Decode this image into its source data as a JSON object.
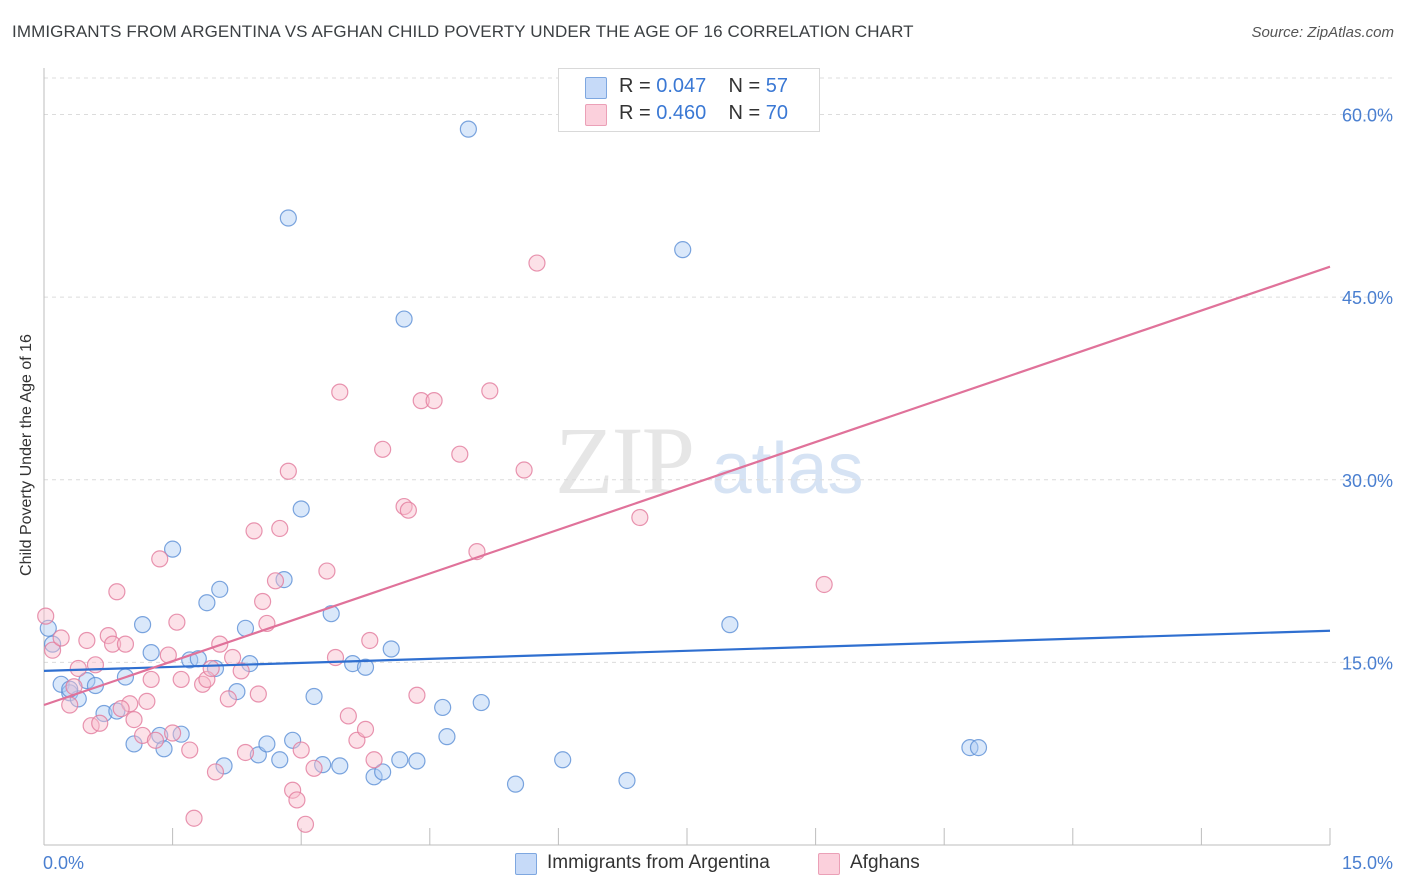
{
  "header": {
    "title": "IMMIGRANTS FROM ARGENTINA VS AFGHAN CHILD POVERTY UNDER THE AGE OF 16 CORRELATION CHART",
    "source": "Source: ZipAtlas.com"
  },
  "watermark": {
    "zip": "ZIP",
    "atlas": "atlas"
  },
  "legend": {
    "r_label": "R = ",
    "n_label": "N = ",
    "rows": [
      {
        "r": "0.047",
        "n": "57",
        "color": "#aecbf5"
      },
      {
        "r": "0.460",
        "n": "70",
        "color": "#f8bccd"
      }
    ]
  },
  "chart_data": {
    "type": "scatter",
    "title": "IMMIGRANTS FROM ARGENTINA VS AFGHAN CHILD POVERTY UNDER THE AGE OF 16 CORRELATION CHART",
    "xlabel": "",
    "ylabel": "Child Poverty Under the Age of 16",
    "xlim": [
      0,
      15
    ],
    "ylim": [
      0,
      63
    ],
    "x_tick_labels": [
      "0.0%",
      "15.0%"
    ],
    "y_ticks": [
      15,
      30,
      45,
      60
    ],
    "y_tick_labels": [
      "15.0%",
      "30.0%",
      "45.0%",
      "60.0%"
    ],
    "grid": true,
    "series": [
      {
        "name": "Immigrants from Argentina",
        "color": "#aecbf5",
        "stroke": "#5b8fd6",
        "trend": {
          "x": [
            0,
            15
          ],
          "y": [
            14.3,
            17.6
          ],
          "color": "#2f6fd0"
        },
        "points": [
          [
            0.1,
            16.5
          ],
          [
            0.2,
            13.2
          ],
          [
            0.3,
            12.5
          ],
          [
            0.4,
            12.0
          ],
          [
            0.5,
            13.5
          ],
          [
            0.6,
            13.1
          ],
          [
            0.7,
            10.8
          ],
          [
            0.85,
            11.0
          ],
          [
            0.95,
            13.8
          ],
          [
            1.05,
            8.3
          ],
          [
            1.15,
            18.1
          ],
          [
            1.25,
            15.8
          ],
          [
            1.35,
            9.0
          ],
          [
            1.4,
            7.9
          ],
          [
            1.5,
            24.3
          ],
          [
            1.6,
            9.1
          ],
          [
            1.7,
            15.2
          ],
          [
            1.8,
            15.3
          ],
          [
            1.9,
            19.9
          ],
          [
            2.0,
            14.5
          ],
          [
            2.05,
            21.0
          ],
          [
            2.1,
            6.5
          ],
          [
            2.25,
            12.6
          ],
          [
            2.35,
            17.8
          ],
          [
            2.4,
            14.9
          ],
          [
            2.5,
            7.4
          ],
          [
            2.6,
            8.3
          ],
          [
            2.75,
            7.0
          ],
          [
            2.8,
            21.8
          ],
          [
            2.85,
            51.5
          ],
          [
            2.9,
            8.6
          ],
          [
            3.0,
            27.6
          ],
          [
            3.15,
            12.2
          ],
          [
            3.25,
            6.6
          ],
          [
            3.35,
            19.0
          ],
          [
            3.45,
            6.5
          ],
          [
            3.6,
            14.9
          ],
          [
            3.75,
            14.6
          ],
          [
            3.85,
            5.6
          ],
          [
            3.95,
            6.0
          ],
          [
            4.05,
            16.1
          ],
          [
            4.15,
            7.0
          ],
          [
            4.2,
            43.2
          ],
          [
            4.35,
            6.9
          ],
          [
            4.65,
            11.3
          ],
          [
            4.7,
            8.9
          ],
          [
            4.95,
            58.8
          ],
          [
            5.1,
            11.7
          ],
          [
            5.5,
            5.0
          ],
          [
            6.05,
            7.0
          ],
          [
            6.8,
            5.3
          ],
          [
            7.45,
            48.9
          ],
          [
            8.0,
            18.1
          ],
          [
            10.8,
            8.0
          ],
          [
            10.9,
            8.0
          ],
          [
            0.05,
            17.8
          ],
          [
            0.3,
            12.8
          ]
        ]
      },
      {
        "name": "Afghans",
        "color": "#f8bccd",
        "stroke": "#e27a9c",
        "trend": {
          "x": [
            0,
            15
          ],
          "y": [
            11.5,
            47.5
          ],
          "color": "#e0729a"
        },
        "points": [
          [
            0.02,
            18.8
          ],
          [
            0.1,
            16.0
          ],
          [
            0.2,
            17.0
          ],
          [
            0.3,
            11.5
          ],
          [
            0.4,
            14.5
          ],
          [
            0.5,
            16.8
          ],
          [
            0.55,
            9.8
          ],
          [
            0.65,
            10.0
          ],
          [
            0.75,
            17.2
          ],
          [
            0.8,
            16.5
          ],
          [
            0.85,
            20.8
          ],
          [
            0.95,
            16.5
          ],
          [
            1.0,
            11.6
          ],
          [
            1.05,
            10.3
          ],
          [
            1.15,
            9.0
          ],
          [
            1.25,
            13.6
          ],
          [
            1.3,
            8.6
          ],
          [
            1.35,
            23.5
          ],
          [
            1.45,
            15.6
          ],
          [
            1.55,
            18.3
          ],
          [
            1.6,
            13.6
          ],
          [
            1.7,
            7.8
          ],
          [
            1.75,
            2.2
          ],
          [
            1.85,
            13.2
          ],
          [
            1.9,
            13.6
          ],
          [
            1.95,
            14.5
          ],
          [
            2.0,
            6.0
          ],
          [
            2.05,
            16.5
          ],
          [
            2.15,
            12.0
          ],
          [
            2.3,
            14.3
          ],
          [
            2.35,
            7.6
          ],
          [
            2.45,
            25.8
          ],
          [
            2.5,
            12.4
          ],
          [
            2.55,
            20.0
          ],
          [
            2.6,
            18.2
          ],
          [
            2.7,
            21.7
          ],
          [
            2.75,
            26.0
          ],
          [
            2.85,
            30.7
          ],
          [
            2.9,
            4.5
          ],
          [
            2.95,
            3.7
          ],
          [
            3.05,
            1.7
          ],
          [
            3.15,
            6.3
          ],
          [
            3.3,
            22.5
          ],
          [
            3.4,
            15.4
          ],
          [
            3.45,
            37.2
          ],
          [
            3.55,
            10.6
          ],
          [
            3.65,
            8.6
          ],
          [
            3.75,
            9.5
          ],
          [
            3.8,
            16.8
          ],
          [
            3.85,
            7.0
          ],
          [
            3.95,
            32.5
          ],
          [
            4.2,
            27.8
          ],
          [
            4.25,
            27.5
          ],
          [
            4.35,
            12.3
          ],
          [
            4.4,
            36.5
          ],
          [
            4.55,
            36.5
          ],
          [
            4.85,
            32.1
          ],
          [
            5.05,
            24.1
          ],
          [
            5.2,
            37.3
          ],
          [
            5.6,
            30.8
          ],
          [
            5.75,
            47.8
          ],
          [
            6.95,
            26.9
          ],
          [
            9.1,
            21.4
          ],
          [
            0.6,
            14.8
          ],
          [
            0.9,
            11.2
          ],
          [
            1.5,
            9.2
          ],
          [
            2.2,
            15.4
          ],
          [
            3.0,
            7.8
          ],
          [
            0.35,
            13.0
          ],
          [
            1.2,
            11.8
          ]
        ]
      }
    ]
  }
}
